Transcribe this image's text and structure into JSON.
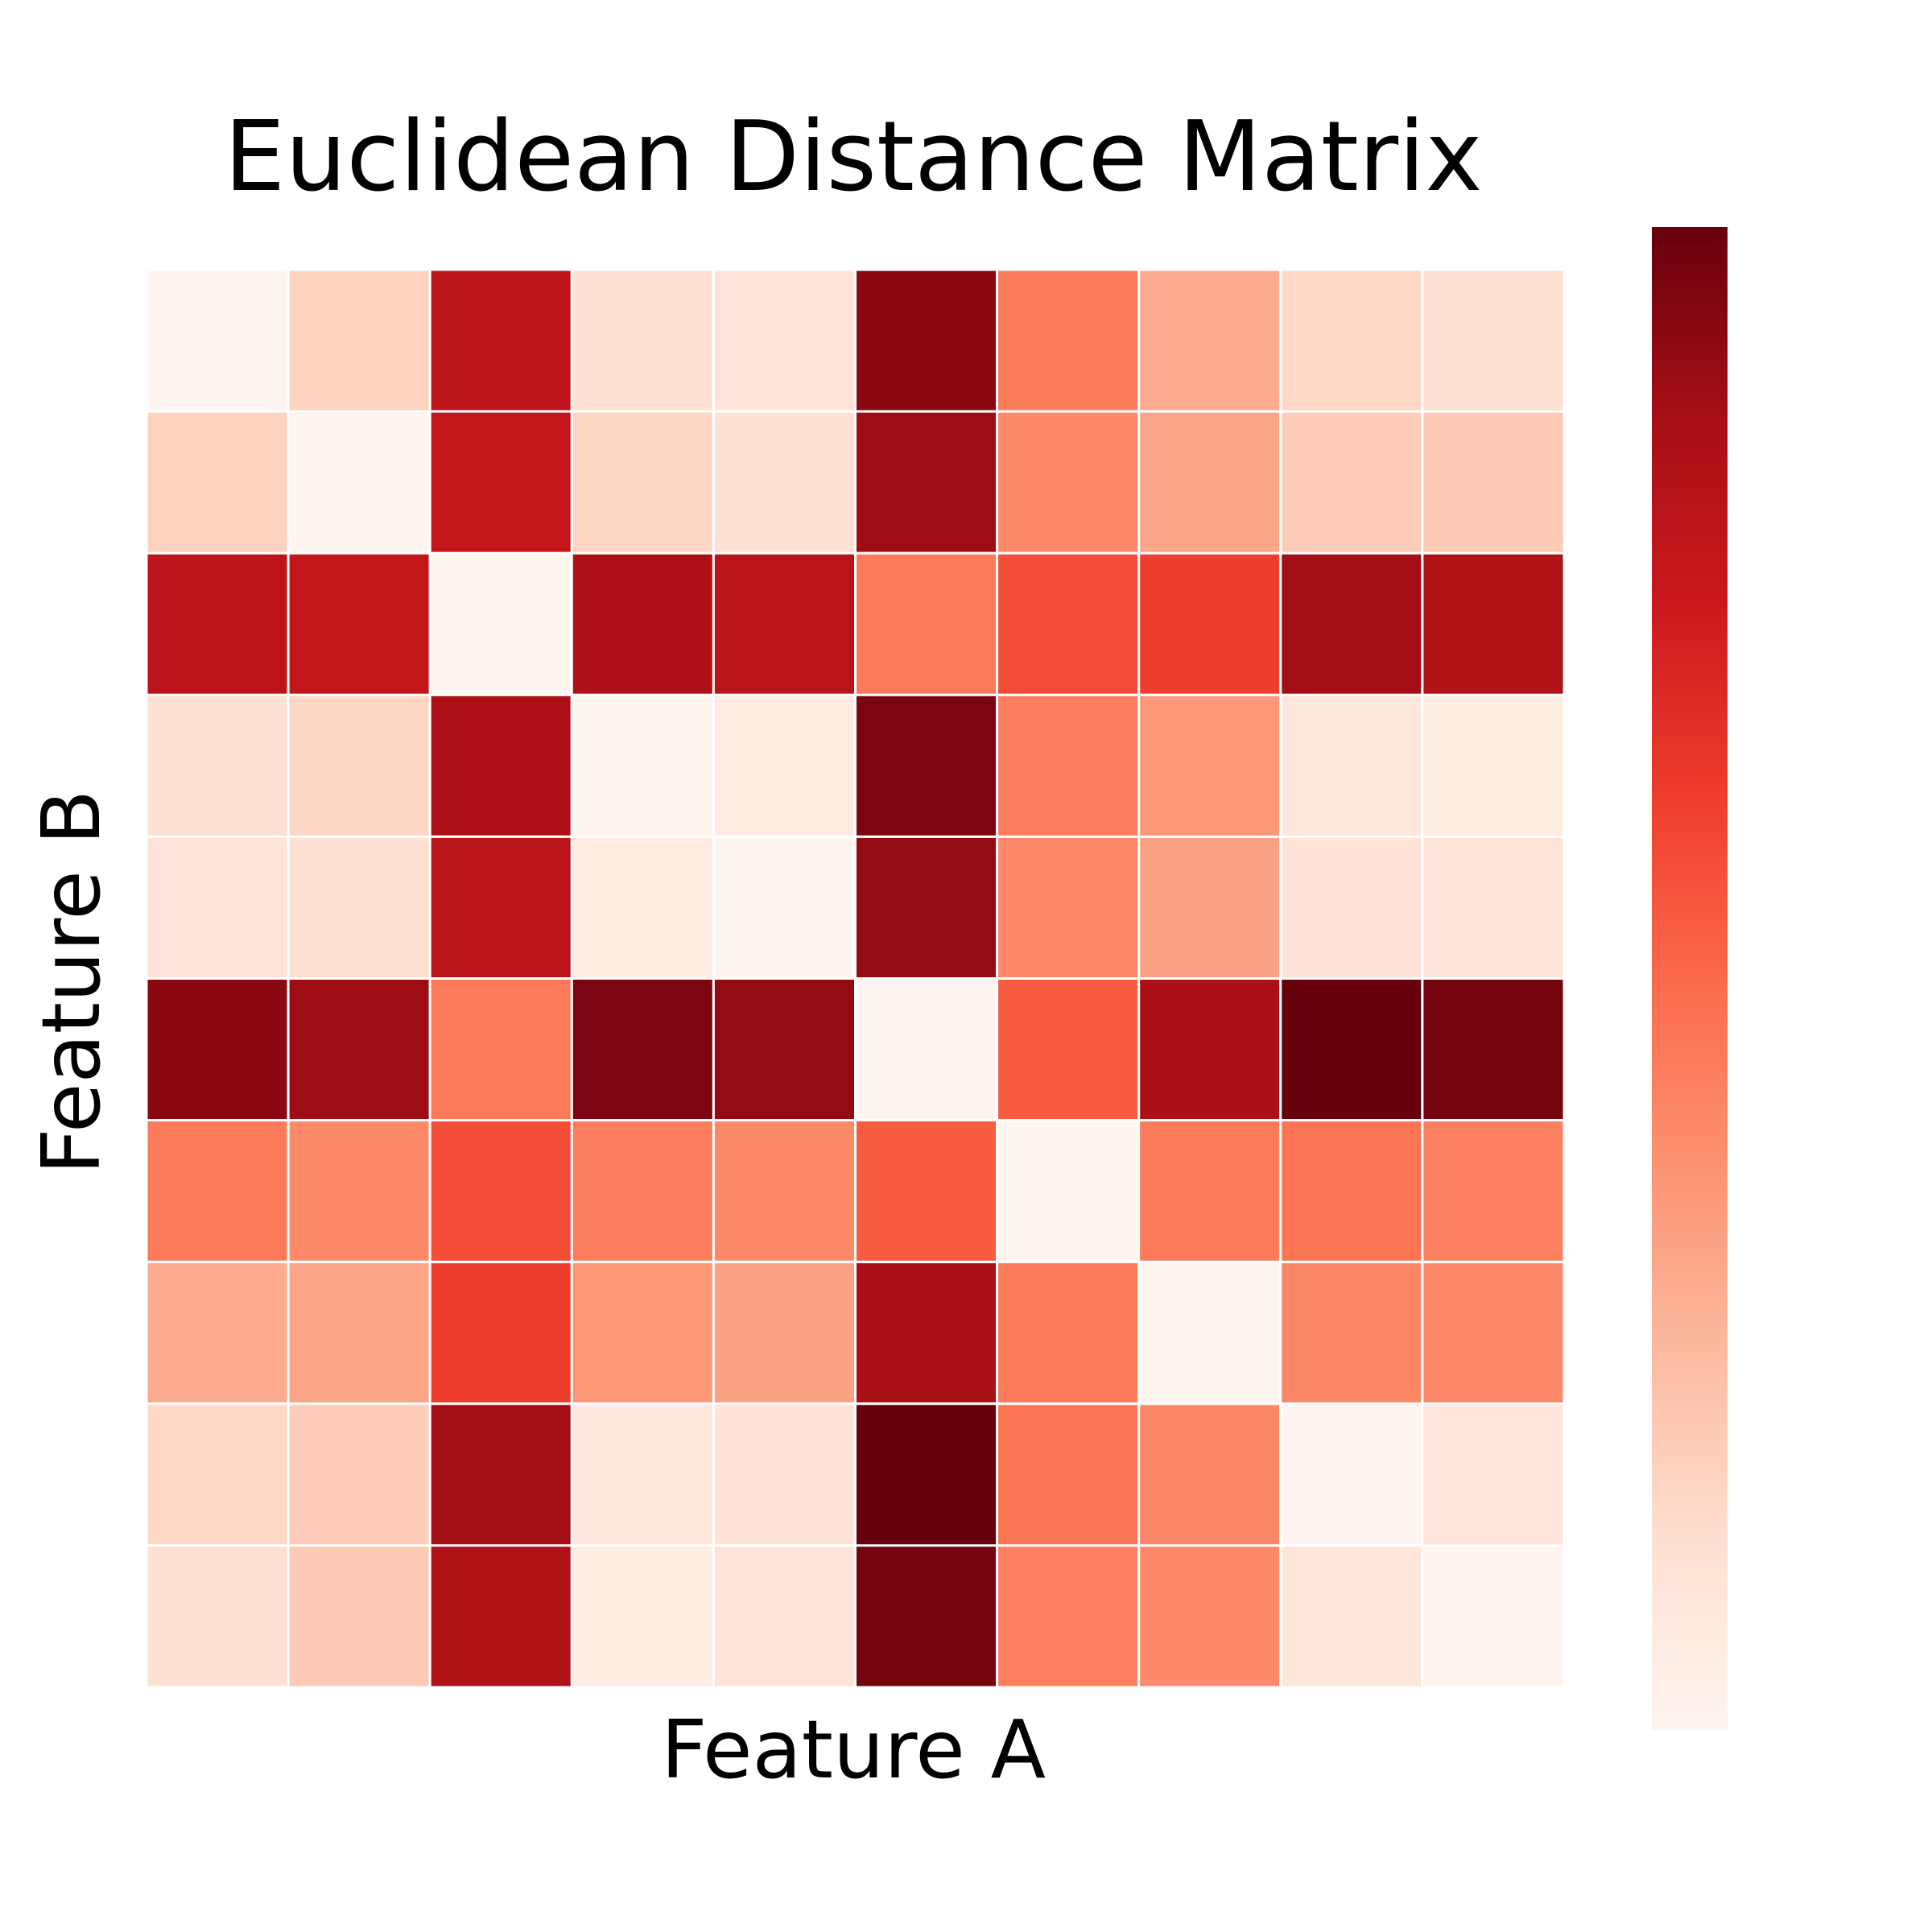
{
  "chart_data": {
    "type": "heatmap",
    "title": "Euclidean Distance Matrix",
    "xlabel": "Feature A",
    "ylabel": "Feature B",
    "colormap": "Reds",
    "color_range": [
      0,
      1
    ],
    "colorbar": true,
    "grid": true,
    "rows": 10,
    "cols": 10,
    "values": [
      [
        0.0,
        0.17,
        0.8,
        0.12,
        0.1,
        0.93,
        0.45,
        0.3,
        0.15,
        0.12
      ],
      [
        0.17,
        0.0,
        0.78,
        0.16,
        0.12,
        0.89,
        0.4,
        0.32,
        0.19,
        0.2
      ],
      [
        0.8,
        0.78,
        0.0,
        0.85,
        0.81,
        0.45,
        0.58,
        0.62,
        0.88,
        0.84
      ],
      [
        0.12,
        0.16,
        0.85,
        0.0,
        0.06,
        0.96,
        0.44,
        0.36,
        0.08,
        0.05
      ],
      [
        0.1,
        0.12,
        0.81,
        0.06,
        0.0,
        0.91,
        0.4,
        0.33,
        0.11,
        0.1
      ],
      [
        0.93,
        0.89,
        0.45,
        0.96,
        0.91,
        0.0,
        0.54,
        0.86,
        1.0,
        0.97
      ],
      [
        0.45,
        0.4,
        0.58,
        0.44,
        0.4,
        0.54,
        0.0,
        0.45,
        0.47,
        0.43
      ],
      [
        0.3,
        0.32,
        0.62,
        0.36,
        0.33,
        0.86,
        0.45,
        0.0,
        0.41,
        0.4
      ],
      [
        0.15,
        0.19,
        0.88,
        0.08,
        0.11,
        1.0,
        0.47,
        0.41,
        0.0,
        0.09
      ],
      [
        0.12,
        0.2,
        0.84,
        0.05,
        0.1,
        0.97,
        0.43,
        0.4,
        0.09,
        0.0
      ]
    ]
  }
}
